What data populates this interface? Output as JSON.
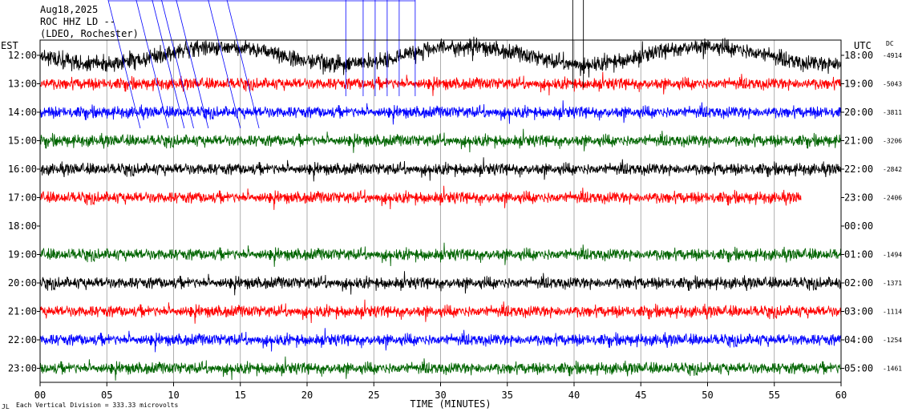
{
  "header": {
    "date": "Aug18,2025",
    "station": "ROC HHZ LD --",
    "network": "(LDEO, Rochester)"
  },
  "labels": {
    "left_zone": "EST",
    "right_zone": "UTC",
    "dc": "DC",
    "x_title": "TIME (MINUTES)",
    "scale_note": "Each Vertical Division =  333.33 microvolts",
    "corner_mark": "JL"
  },
  "chart_data": {
    "type": "line",
    "title": "",
    "xlabel": "TIME (MINUTES)",
    "xlim": [
      0,
      60
    ],
    "x_ticks": [
      "00",
      "05",
      "10",
      "15",
      "20",
      "25",
      "30",
      "35",
      "40",
      "45",
      "50",
      "55",
      "60"
    ],
    "grid": "vertical lines every 5 minutes",
    "colors": {
      "black": "#000000",
      "red": "#ff0000",
      "blue": "#0000ff",
      "green": "#006400"
    },
    "rows": [
      {
        "est": "12:00",
        "utc": "18:00",
        "dc": "-4914",
        "color": "black",
        "end_minute": 60
      },
      {
        "est": "13:00",
        "utc": "19:00",
        "dc": "-5043",
        "color": "red",
        "end_minute": 60
      },
      {
        "est": "14:00",
        "utc": "20:00",
        "dc": "-3811",
        "color": "blue",
        "end_minute": 60
      },
      {
        "est": "15:00",
        "utc": "21:00",
        "dc": "-3206",
        "color": "green",
        "end_minute": 60
      },
      {
        "est": "16:00",
        "utc": "22:00",
        "dc": "-2842",
        "color": "black",
        "end_minute": 60
      },
      {
        "est": "17:00",
        "utc": "23:00",
        "dc": "-2406",
        "color": "red",
        "end_minute": 57
      },
      {
        "est": "18:00",
        "utc": "00:00",
        "dc": "",
        "color": "none",
        "end_minute": 0
      },
      {
        "est": "19:00",
        "utc": "01:00",
        "dc": "-1494",
        "color": "green",
        "end_minute": 60
      },
      {
        "est": "20:00",
        "utc": "02:00",
        "dc": "-1371",
        "color": "black",
        "end_minute": 60
      },
      {
        "est": "21:00",
        "utc": "03:00",
        "dc": "-1114",
        "color": "red",
        "end_minute": 60
      },
      {
        "est": "22:00",
        "utc": "04:00",
        "dc": "-1254",
        "color": "blue",
        "end_minute": 60
      },
      {
        "est": "23:00",
        "utc": "05:00",
        "dc": "-1461",
        "color": "green",
        "end_minute": 60
      }
    ]
  }
}
